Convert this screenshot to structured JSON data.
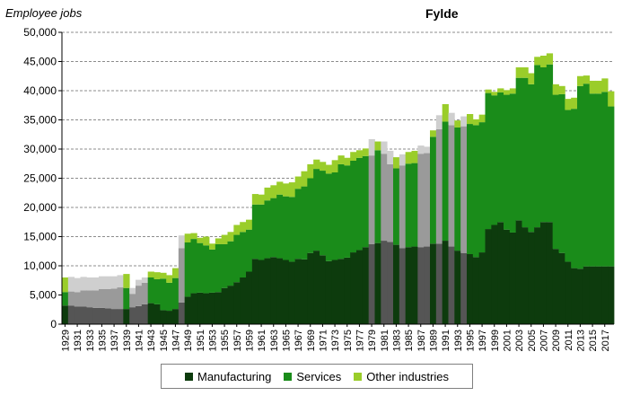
{
  "chart_data": {
    "type": "area",
    "title": "Fylde",
    "ylabel": "Employee jobs",
    "xlabel": "",
    "ylim": [
      0,
      50000
    ],
    "yticks": [
      0,
      5000,
      10000,
      15000,
      20000,
      25000,
      30000,
      35000,
      40000,
      45000,
      50000
    ],
    "ytick_labels": [
      "0",
      "5,000",
      "10,000",
      "15,000",
      "20,000",
      "25,000",
      "30,000",
      "35,000",
      "40,000",
      "45,000",
      "50,000"
    ],
    "xtick_labels": [
      "1929",
      "1931",
      "1933",
      "1935",
      "1937",
      "1939",
      "1941",
      "1943",
      "1945",
      "1947",
      "1949",
      "1951",
      "1953",
      "1955",
      "1957",
      "1959",
      "1961",
      "1963",
      "1965",
      "1967",
      "1969",
      "1971",
      "1973",
      "1975",
      "1977",
      "1979",
      "1981",
      "1983",
      "1985",
      "1987",
      "1989",
      "1991",
      "1993",
      "1995",
      "1997",
      "1999",
      "2001",
      "2003",
      "2005",
      "2007",
      "2009",
      "2011",
      "2013",
      "2015",
      "2017"
    ],
    "grid": true,
    "legend_position": "bottom",
    "colors": {
      "Manufacturing": "#0d3b0d",
      "Services": "#1a8c1a",
      "Other industries": "#9acd2a",
      "Manufacturing (estimated)": "#555555",
      "Services (estimated)": "#9a9a9a",
      "Other industries (estimated)": "#cfcfcf"
    },
    "years": [
      1929,
      1930,
      1931,
      1932,
      1933,
      1934,
      1935,
      1936,
      1937,
      1938,
      1939,
      1940,
      1941,
      1942,
      1943,
      1944,
      1945,
      1946,
      1947,
      1948,
      1949,
      1950,
      1951,
      1952,
      1953,
      1954,
      1955,
      1956,
      1957,
      1958,
      1959,
      1960,
      1961,
      1962,
      1963,
      1964,
      1965,
      1966,
      1967,
      1968,
      1969,
      1970,
      1971,
      1972,
      1973,
      1974,
      1975,
      1976,
      1977,
      1978,
      1979,
      1980,
      1981,
      1982,
      1983,
      1984,
      1985,
      1986,
      1987,
      1988,
      1989,
      1990,
      1991,
      1992,
      1993,
      1994,
      1995,
      1996,
      1997,
      1998,
      1999,
      2000,
      2001,
      2002,
      2003,
      2004,
      2005,
      2006,
      2007,
      2008,
      2009,
      2010,
      2011,
      2012,
      2013,
      2014,
      2015,
      2016,
      2017,
      2018
    ],
    "estimated": [
      0,
      1,
      1,
      1,
      1,
      1,
      1,
      1,
      1,
      1,
      0,
      1,
      1,
      1,
      0,
      0,
      0,
      0,
      0,
      1,
      0,
      0,
      0,
      0,
      0,
      0,
      0,
      0,
      0,
      0,
      0,
      0,
      0,
      0,
      0,
      0,
      0,
      0,
      0,
      0,
      0,
      0,
      0,
      0,
      0,
      0,
      0,
      0,
      0,
      0,
      1,
      0,
      1,
      1,
      0,
      1,
      0,
      0,
      1,
      1,
      0,
      1,
      0,
      1,
      0,
      1,
      0,
      0,
      0,
      0,
      0,
      0,
      0,
      0,
      0,
      0,
      0,
      0,
      0,
      0,
      0,
      0,
      0,
      0,
      0,
      0,
      0,
      0,
      0,
      0
    ],
    "series": [
      {
        "name": "Manufacturing",
        "values": [
          3200,
          3200,
          3000,
          3000,
          2900,
          2800,
          2800,
          2700,
          2600,
          2600,
          2600,
          2900,
          3100,
          3400,
          3600,
          3400,
          2400,
          2300,
          2600,
          3700,
          4700,
          5300,
          5400,
          5300,
          5400,
          5500,
          6200,
          6600,
          7200,
          8000,
          9000,
          11200,
          11000,
          11300,
          11500,
          11300,
          11000,
          10700,
          11200,
          11100,
          12200,
          12600,
          11800,
          10800,
          11000,
          11200,
          11400,
          12300,
          12700,
          13200,
          13700,
          13900,
          14300,
          14100,
          13600,
          13000,
          13200,
          13300,
          13200,
          13300,
          13800,
          13800,
          14300,
          13300,
          12600,
          12200,
          12000,
          11500,
          12300,
          16300,
          17000,
          17500,
          16200,
          15700,
          17800,
          16600,
          15800,
          16600,
          17500,
          17500,
          12900,
          12200,
          10700,
          9600,
          9500,
          9900,
          9900,
          9900,
          9900,
          9900
        ]
      },
      {
        "name": "Services",
        "values": [
          2300,
          2400,
          2500,
          2800,
          2900,
          3000,
          3200,
          3300,
          3500,
          3700,
          3600,
          2300,
          3500,
          3700,
          4400,
          4300,
          5400,
          4800,
          5300,
          9300,
          9300,
          9300,
          8500,
          8200,
          7400,
          8200,
          7500,
          7600,
          8100,
          7800,
          7200,
          9300,
          9500,
          9900,
          10100,
          10900,
          10900,
          11100,
          12000,
          12500,
          12800,
          14000,
          14500,
          15000,
          15000,
          16200,
          15800,
          15700,
          15800,
          15600,
          15200,
          15900,
          14900,
          13300,
          13100,
          14200,
          14300,
          14300,
          16000,
          16000,
          18300,
          19600,
          20400,
          20800,
          21100,
          21700,
          22300,
          22600,
          22300,
          23300,
          22200,
          22200,
          23100,
          23800,
          24400,
          25600,
          25300,
          27800,
          26500,
          27000,
          26400,
          27200,
          26000,
          27300,
          31300,
          31300,
          29600,
          29600,
          29900,
          27400
        ]
      },
      {
        "name": "Other industries",
        "values": [
          2500,
          2500,
          2400,
          2300,
          2200,
          2200,
          2200,
          2200,
          2100,
          2100,
          2400,
          1000,
          1000,
          900,
          1000,
          1200,
          1000,
          1300,
          1700,
          2200,
          1500,
          1000,
          900,
          1500,
          1000,
          1000,
          1600,
          1600,
          1700,
          1700,
          1700,
          1800,
          1700,
          2200,
          2200,
          2200,
          2200,
          2500,
          2100,
          2600,
          2400,
          1600,
          1500,
          1500,
          2100,
          1500,
          1300,
          1500,
          1300,
          1300,
          2800,
          1500,
          2100,
          2300,
          1900,
          1900,
          2000,
          2100,
          1400,
          1100,
          1100,
          2400,
          3000,
          2100,
          1200,
          1700,
          1700,
          1000,
          1300,
          600,
          600,
          700,
          800,
          900,
          1800,
          1800,
          1900,
          1400,
          2000,
          1900,
          1800,
          1400,
          1900,
          1900,
          1700,
          1400,
          2200,
          2200,
          2300,
          2600
        ]
      }
    ]
  }
}
